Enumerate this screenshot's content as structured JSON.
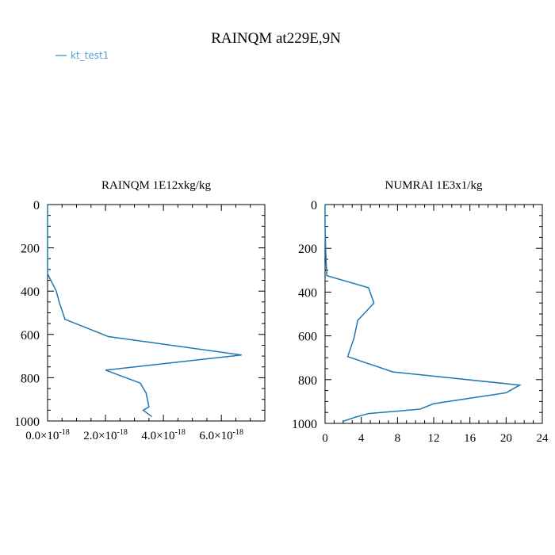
{
  "figure": {
    "title": "RAINQM at229E,9N",
    "legend": {
      "label": "kt_test1",
      "color": "#5aa0d0"
    },
    "line_color": "#1f77b4"
  },
  "chart_data": [
    {
      "type": "line",
      "title": "RAINQM  1E12xkg/kg",
      "xlabel": "",
      "ylabel": "",
      "xlim": [
        0,
        7.5e-18
      ],
      "ylim": [
        1000,
        0
      ],
      "y_inverted": true,
      "xticks": [
        0,
        2e-18,
        4e-18,
        6e-18
      ],
      "xtick_labels": [
        {
          "mant": "0.0",
          "times": "×10",
          "exp": "-18"
        },
        {
          "mant": "2.0",
          "times": "×10",
          "exp": "-18"
        },
        {
          "mant": "4.0",
          "times": "×10",
          "exp": "-18"
        },
        {
          "mant": "6.0",
          "times": "×10",
          "exp": "-18"
        }
      ],
      "yticks": [
        0,
        200,
        400,
        600,
        800,
        1000
      ],
      "ytick_labels": [
        "0",
        "200",
        "400",
        "600",
        "800",
        "1000"
      ],
      "grid": false,
      "series": [
        {
          "name": "kt_test1",
          "x": [
            0,
            0,
            0,
            3e-19,
            4e-19,
            6e-19,
            2.1e-18,
            6.7e-18,
            2e-18,
            3.2e-18,
            3.4e-18,
            3.5e-18,
            3.3e-18,
            3.6e-18
          ],
          "y": [
            0,
            100,
            320,
            400,
            450,
            530,
            610,
            695,
            765,
            825,
            870,
            935,
            950,
            980
          ]
        }
      ]
    },
    {
      "type": "line",
      "title": "NUMRAI  1E3x1/kg",
      "xlabel": "",
      "ylabel": "",
      "xlim": [
        0,
        24
      ],
      "ylim": [
        1000,
        0
      ],
      "y_inverted": true,
      "xticks": [
        0,
        4,
        8,
        12,
        16,
        20,
        24
      ],
      "xtick_labels": [
        "0",
        "4",
        "8",
        "12",
        "16",
        "20",
        "24"
      ],
      "yticks": [
        0,
        200,
        400,
        600,
        800,
        1000
      ],
      "ytick_labels": [
        "0",
        "200",
        "400",
        "600",
        "800",
        "1000"
      ],
      "grid": false,
      "series": [
        {
          "name": "kt_test1",
          "x": [
            0,
            0,
            0.1,
            0.2,
            4.8,
            5.4,
            3.6,
            3.2,
            2.5,
            7.5,
            21.5,
            20,
            12,
            10.5,
            4.8,
            3.5,
            2
          ],
          "y": [
            0,
            100,
            250,
            325,
            380,
            450,
            530,
            610,
            695,
            765,
            825,
            860,
            910,
            935,
            955,
            970,
            990
          ]
        }
      ]
    }
  ]
}
